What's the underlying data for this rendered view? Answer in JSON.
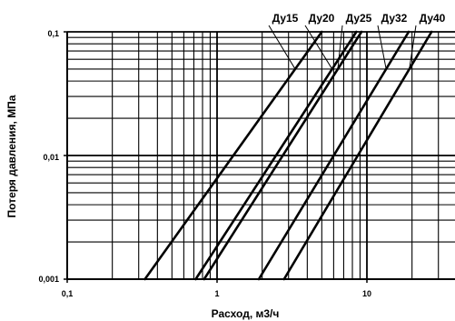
{
  "chart_data": {
    "type": "line",
    "xscale": "log",
    "yscale": "log",
    "xlim": [
      0.1,
      30
    ],
    "ylim": [
      0.001,
      0.1
    ],
    "grid": true,
    "xlabel": "Расход, м3/ч",
    "ylabel": "Потеря давления, МПа",
    "x_ticks": [
      "0,1",
      "1",
      "10"
    ],
    "y_ticks": [
      "0,001",
      "0,01",
      "0,1"
    ],
    "series": [
      {
        "name": "Ду15",
        "x": [
          0.33,
          5.0
        ],
        "y": [
          0.001,
          0.1
        ]
      },
      {
        "name": "Ду20",
        "x": [
          0.72,
          8.5
        ],
        "y": [
          0.001,
          0.1
        ]
      },
      {
        "name": "Ду25",
        "x": [
          0.82,
          9.2
        ],
        "y": [
          0.001,
          0.1
        ]
      },
      {
        "name": "Ду32",
        "x": [
          1.9,
          19.0
        ],
        "y": [
          0.001,
          0.1
        ]
      },
      {
        "name": "Ду40",
        "x": [
          2.8,
          27.0
        ],
        "y": [
          0.001,
          0.1
        ]
      }
    ]
  }
}
